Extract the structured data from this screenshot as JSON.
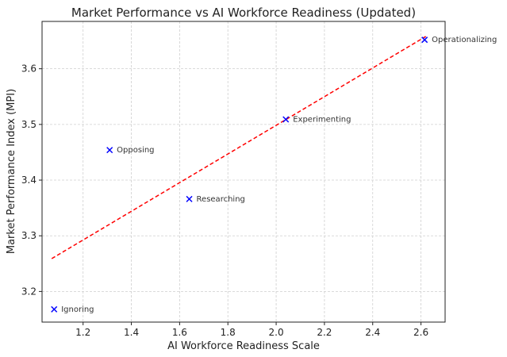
{
  "chart_data": {
    "type": "scatter",
    "title": "Market Performance vs AI Workforce Readiness (Updated)",
    "xlabel": "AI Workforce Readiness Scale",
    "ylabel": "Market Performance Index (MPI)",
    "xlim": [
      1.03,
      2.7
    ],
    "ylim": [
      3.145,
      3.685
    ],
    "xticks": [
      1.2,
      1.4,
      1.6,
      1.8,
      2.0,
      2.2,
      2.4,
      2.6
    ],
    "xtick_labels": [
      "1.2",
      "1.4",
      "1.6",
      "1.8",
      "2.0",
      "2.2",
      "2.4",
      "2.6"
    ],
    "yticks": [
      3.2,
      3.3,
      3.4,
      3.5,
      3.6
    ],
    "ytick_labels": [
      "3.2",
      "3.3",
      "3.4",
      "3.5",
      "3.6"
    ],
    "grid": true,
    "marker": "x",
    "marker_color": "#0000ff",
    "trend_color": "#ff0000",
    "points": [
      {
        "label": "Ignoring",
        "x": 1.08,
        "y": 3.168
      },
      {
        "label": "Opposing",
        "x": 1.31,
        "y": 3.454
      },
      {
        "label": "Researching",
        "x": 1.64,
        "y": 3.366
      },
      {
        "label": "Experimenting",
        "x": 2.04,
        "y": 3.509
      },
      {
        "label": "Operationalizing",
        "x": 2.615,
        "y": 3.652
      }
    ],
    "trendline": {
      "x": [
        1.07,
        2.62
      ],
      "y": [
        3.259,
        3.658
      ]
    }
  }
}
